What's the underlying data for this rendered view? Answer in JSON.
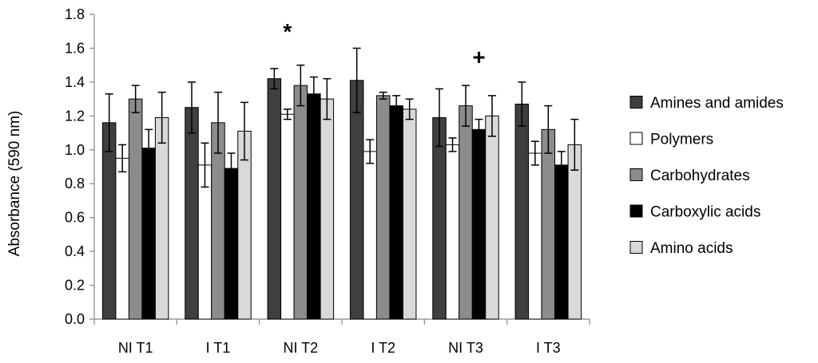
{
  "chart_data": {
    "type": "bar",
    "title": "",
    "xlabel": "",
    "ylabel": "Absorbance (590 nm)",
    "ylim": [
      0,
      1.8
    ],
    "yticks": [
      "0.0",
      "0.2",
      "0.4",
      "0.6",
      "0.8",
      "1.0",
      "1.2",
      "1.4",
      "1.6",
      "1.8"
    ],
    "grid": false,
    "legend_position": "right",
    "categories": [
      "NI T1",
      "I T1",
      "NI T2",
      "I T2",
      "NI T3",
      "I T3"
    ],
    "series": [
      {
        "name": "Amines and amides",
        "color": "#3f3f3f",
        "values": [
          1.16,
          1.25,
          1.42,
          1.41,
          1.19,
          1.27
        ],
        "errors": [
          0.17,
          0.15,
          0.06,
          0.19,
          0.17,
          0.13
        ]
      },
      {
        "name": "Polymers",
        "color": "#ffffff",
        "values": [
          0.95,
          0.91,
          1.21,
          0.99,
          1.03,
          0.98
        ],
        "errors": [
          0.08,
          0.13,
          0.03,
          0.07,
          0.04,
          0.07
        ]
      },
      {
        "name": "Carbohydrates",
        "color": "#8c8c8c",
        "values": [
          1.3,
          1.16,
          1.38,
          1.32,
          1.26,
          1.12
        ],
        "errors": [
          0.08,
          0.18,
          0.12,
          0.02,
          0.12,
          0.14
        ]
      },
      {
        "name": "Carboxylic acids",
        "color": "#000000",
        "values": [
          1.01,
          0.89,
          1.33,
          1.26,
          1.12,
          0.91
        ],
        "errors": [
          0.11,
          0.09,
          0.1,
          0.06,
          0.06,
          0.08
        ]
      },
      {
        "name": "Amino acids",
        "color": "#d9d9d9",
        "values": [
          1.19,
          1.11,
          1.3,
          1.24,
          1.2,
          1.03
        ],
        "errors": [
          0.15,
          0.17,
          0.12,
          0.06,
          0.12,
          0.15
        ]
      }
    ],
    "annotations": [
      {
        "text": "*",
        "category": "NI T2",
        "series": "Polymers",
        "y": 1.7
      },
      {
        "text": "+",
        "category": "NI T3",
        "series": "Carboxylic acids",
        "y": 1.55
      }
    ]
  }
}
